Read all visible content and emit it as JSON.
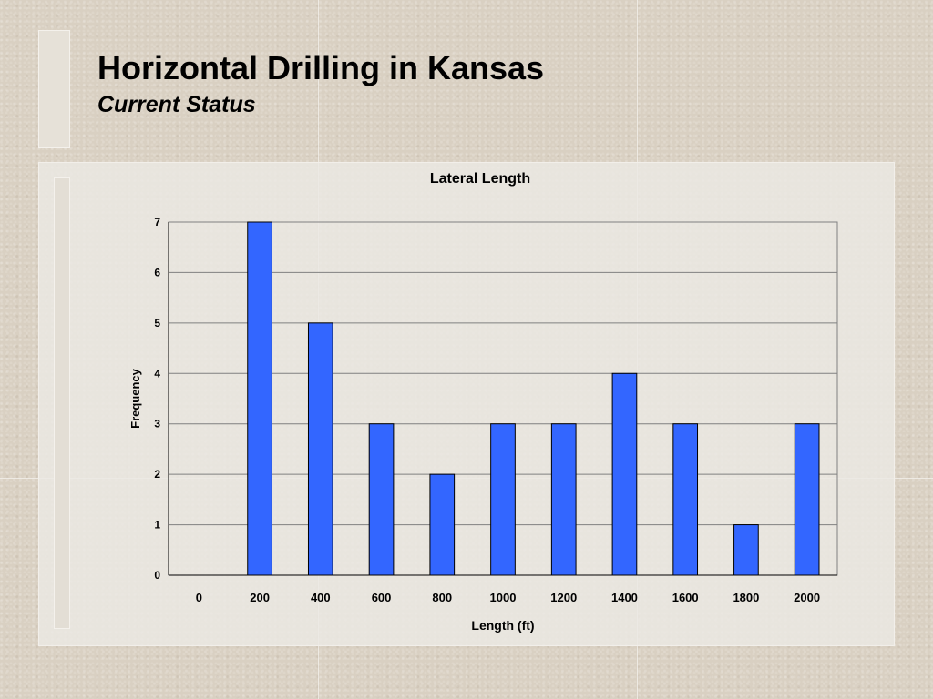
{
  "slide": {
    "title": "Horizontal Drilling in Kansas",
    "subtitle": "Current Status"
  },
  "colors": {
    "bar": "#3366ff",
    "gridline": "#808080"
  },
  "chart_data": {
    "type": "bar",
    "title": "Lateral Length",
    "xlabel": "Length (ft)",
    "ylabel": "Frequency",
    "categories": [
      "0",
      "200",
      "400",
      "600",
      "800",
      "1000",
      "1200",
      "1400",
      "1600",
      "1800",
      "2000"
    ],
    "values": [
      0,
      7,
      5,
      3,
      2,
      3,
      3,
      4,
      3,
      1,
      3
    ],
    "ylim": [
      0,
      7
    ],
    "yticks": [
      "0",
      "1",
      "2",
      "3",
      "4",
      "5",
      "6",
      "7"
    ],
    "grid": true,
    "legend": "none"
  }
}
